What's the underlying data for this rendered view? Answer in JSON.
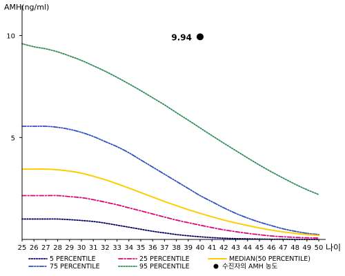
{
  "chart_data": {
    "type": "line",
    "ylabel": "AMH(ng/ml)",
    "xlabel": "나이",
    "x": [
      25,
      26,
      27,
      28,
      29,
      30,
      31,
      32,
      33,
      34,
      35,
      36,
      37,
      38,
      39,
      40,
      41,
      42,
      43,
      44,
      45,
      46,
      47,
      48,
      49,
      50
    ],
    "xlim": [
      25,
      50
    ],
    "ylim": [
      0,
      11
    ],
    "yticks": [
      5,
      10
    ],
    "grid": false,
    "legend_position": "bottom",
    "series": [
      {
        "name": "5 PERCENTILE",
        "color": "#000066",
        "dash": "dotted",
        "values": [
          1.0,
          1.0,
          1.0,
          1.0,
          0.97,
          0.93,
          0.88,
          0.8,
          0.7,
          0.6,
          0.5,
          0.4,
          0.32,
          0.24,
          0.18,
          0.13,
          0.09,
          0.06,
          0.04,
          0.03,
          0.02,
          0.01,
          0.01,
          0.0,
          0.0,
          0.0
        ]
      },
      {
        "name": "25 PERCENTILE",
        "color": "#e0007a",
        "dash": "dashdot",
        "values": [
          2.15,
          2.15,
          2.15,
          2.15,
          2.1,
          2.05,
          1.95,
          1.83,
          1.7,
          1.55,
          1.4,
          1.25,
          1.1,
          0.95,
          0.82,
          0.7,
          0.58,
          0.47,
          0.38,
          0.3,
          0.23,
          0.17,
          0.13,
          0.1,
          0.08,
          0.07
        ]
      },
      {
        "name": "75 PERCENTILE",
        "color": "#2e4fc0",
        "dash": "dashdotdot",
        "values": [
          5.55,
          5.55,
          5.55,
          5.5,
          5.4,
          5.25,
          5.05,
          4.8,
          4.55,
          4.25,
          3.9,
          3.55,
          3.2,
          2.85,
          2.5,
          2.15,
          1.85,
          1.55,
          1.28,
          1.05,
          0.85,
          0.68,
          0.52,
          0.4,
          0.3,
          0.24
        ]
      },
      {
        "name": "95 PERCENTILE",
        "color": "#2e8b57",
        "dash": "dotted",
        "values": [
          9.6,
          9.45,
          9.35,
          9.2,
          9.0,
          8.78,
          8.52,
          8.25,
          7.95,
          7.63,
          7.3,
          6.95,
          6.6,
          6.22,
          5.85,
          5.47,
          5.09,
          4.72,
          4.36,
          4.0,
          3.65,
          3.32,
          3.01,
          2.71,
          2.44,
          2.2
        ]
      },
      {
        "name": "MEDIAN(50 PERCENTILE)",
        "color": "#ffcc00",
        "dash": "solid",
        "values": [
          3.45,
          3.45,
          3.45,
          3.42,
          3.35,
          3.25,
          3.1,
          2.93,
          2.73,
          2.52,
          2.3,
          2.08,
          1.86,
          1.66,
          1.46,
          1.28,
          1.11,
          0.95,
          0.81,
          0.68,
          0.56,
          0.46,
          0.37,
          0.3,
          0.24,
          0.2
        ]
      }
    ],
    "highlight_point": {
      "name": "수진자의 AMH 농도",
      "x": 40,
      "y": 9.94,
      "label": "9.94",
      "color": "#000000"
    }
  }
}
